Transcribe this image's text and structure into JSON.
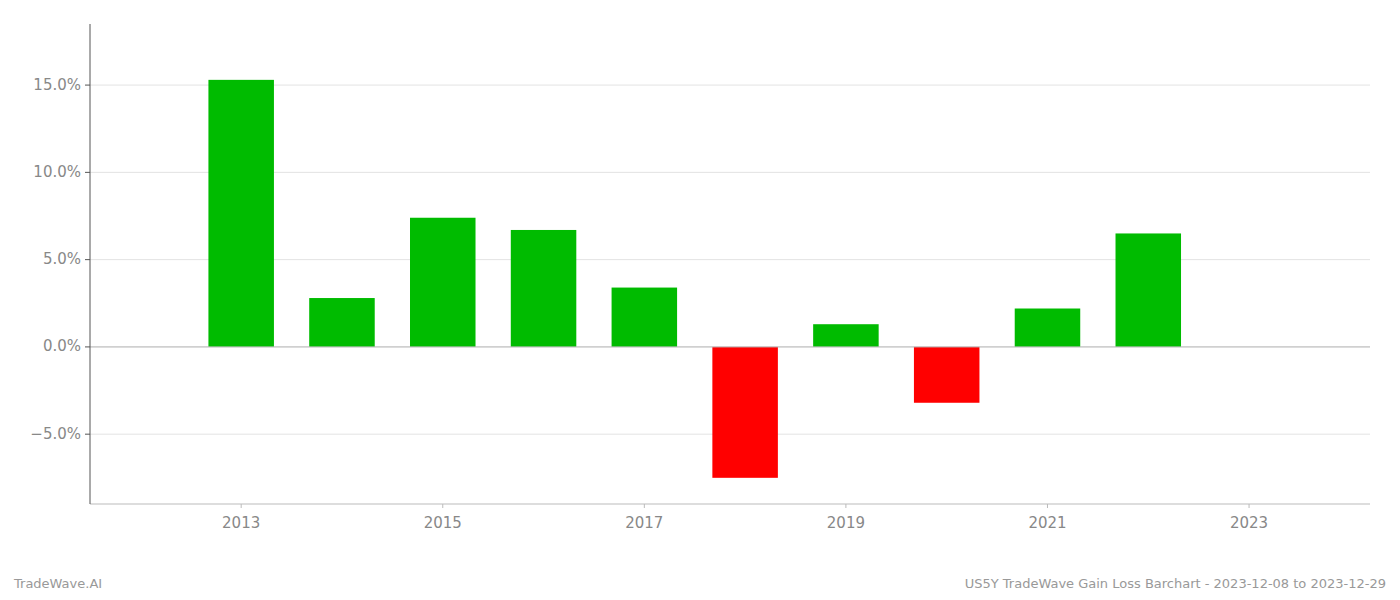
{
  "chart_data": {
    "type": "bar",
    "x": [
      2013,
      2014,
      2015,
      2016,
      2017,
      2018,
      2019,
      2020,
      2021,
      2022
    ],
    "values": [
      0.153,
      0.028,
      0.074,
      0.067,
      0.034,
      -0.075,
      0.013,
      -0.032,
      0.022,
      0.065
    ],
    "colors": [
      "#00bb00",
      "#00bb00",
      "#00bb00",
      "#00bb00",
      "#00bb00",
      "#ff0000",
      "#00bb00",
      "#ff0000",
      "#00bb00",
      "#00bb00"
    ],
    "xlim": [
      2011.5,
      2024.2
    ],
    "xticks": [
      2013,
      2015,
      2017,
      2019,
      2021,
      2023
    ],
    "ylim": [
      -0.09,
      0.185
    ],
    "yticks": [
      {
        "value": -0.05,
        "label": "−5.0%"
      },
      {
        "value": 0.0,
        "label": "0.0%"
      },
      {
        "value": 0.05,
        "label": "5.0%"
      },
      {
        "value": 0.1,
        "label": "10.0%"
      },
      {
        "value": 0.15,
        "label": "15.0%"
      }
    ],
    "grid": true,
    "annotations": [
      "TradeWave.AI",
      "US5Y TradeWave Gain Loss Barchart - 2023-12-08 to 2023-12-29"
    ]
  }
}
